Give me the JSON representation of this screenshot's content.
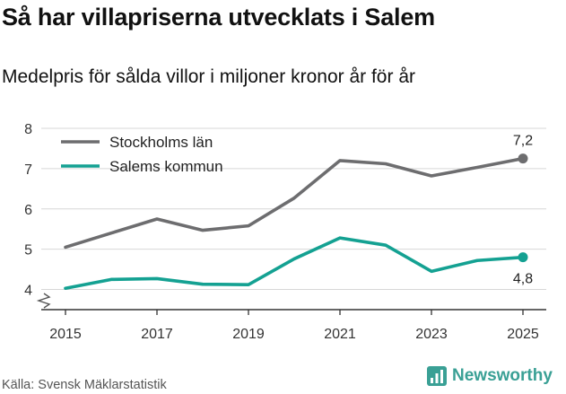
{
  "title": "Så har villapriserna utvecklats i Salem",
  "subtitle": "Medelpris för sålda villor i miljoner kronor år för år",
  "source": "Källa: Svensk Mäklarstatistik",
  "brand": {
    "name": "Newsworthy",
    "icon": "bar-chart-icon",
    "color": "#3aa095"
  },
  "chart_data": {
    "type": "line",
    "title": "Så har villapriserna utvecklats i Salem",
    "subtitle": "Medelpris för sålda villor i miljoner kronor år för år",
    "xlabel": "",
    "ylabel": "",
    "x": [
      2015,
      2016,
      2017,
      2018,
      2019,
      2020,
      2021,
      2022,
      2023,
      2024,
      2025
    ],
    "xticks": [
      "2015",
      "2017",
      "2019",
      "2021",
      "2023",
      "2025"
    ],
    "yticks": [
      "4",
      "5",
      "6",
      "7",
      "8"
    ],
    "ylim": [
      3.5,
      8
    ],
    "xlim": [
      2015,
      2025
    ],
    "grid": true,
    "legend_position": "top-left",
    "axis_break": true,
    "series": [
      {
        "name": "Stockholms län",
        "color": "#6d6d6f",
        "values": [
          5.05,
          5.4,
          5.75,
          5.47,
          5.58,
          6.27,
          7.2,
          7.12,
          6.82,
          7.03,
          7.25
        ],
        "end_label": "7,2"
      },
      {
        "name": "Salems kommun",
        "color": "#14a192",
        "values": [
          4.03,
          4.25,
          4.27,
          4.13,
          4.12,
          4.76,
          5.28,
          5.1,
          4.45,
          4.72,
          4.8
        ],
        "end_label": "4,8"
      }
    ]
  }
}
